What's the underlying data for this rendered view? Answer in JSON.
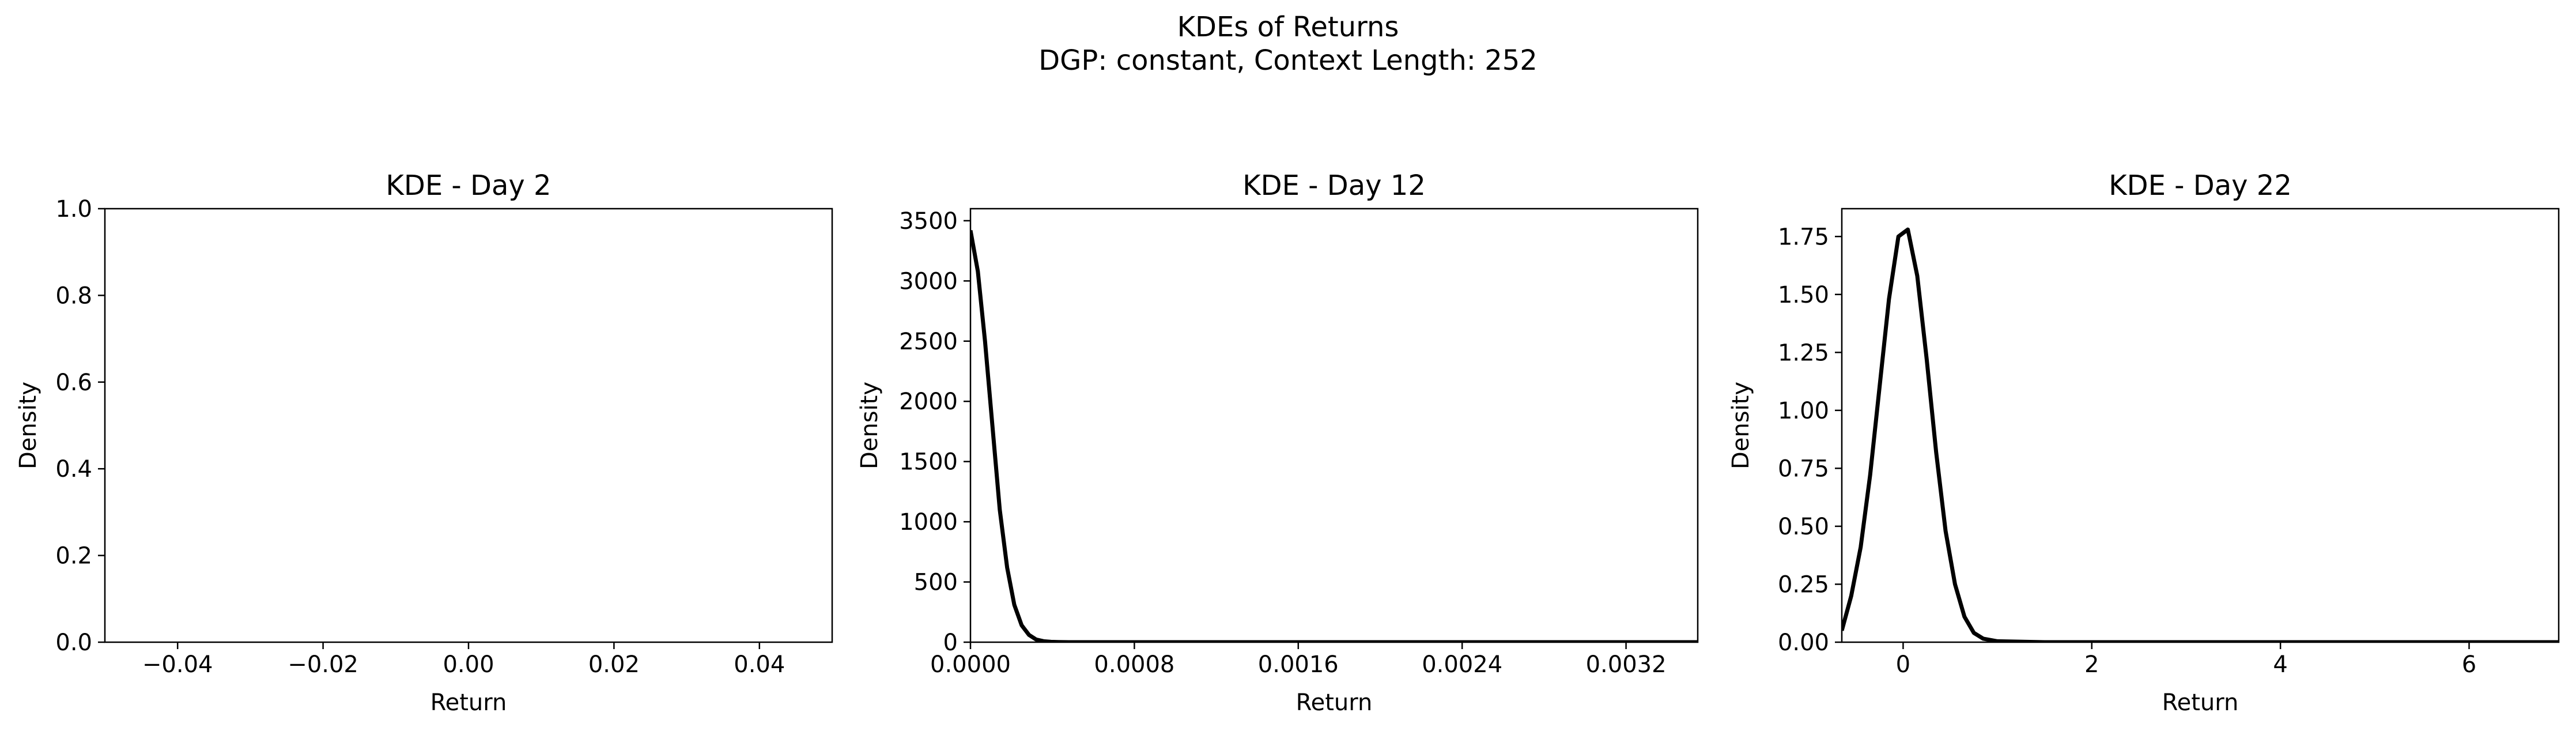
{
  "figure": {
    "suptitle_line1": "KDEs of Returns",
    "suptitle_line2": "DGP: constant, Context Length: 252"
  },
  "chart_data": [
    {
      "type": "line",
      "title": "KDE - Day 2",
      "xlabel": "Return",
      "ylabel": "Density",
      "xlim": [
        -0.05,
        0.05
      ],
      "ylim": [
        0,
        1.0
      ],
      "xticks": [
        -0.04,
        -0.02,
        0.0,
        0.02,
        0.04
      ],
      "xtick_labels": [
        "−0.04",
        "−0.02",
        "0.00",
        "0.02",
        "0.04"
      ],
      "yticks": [
        0.0,
        0.2,
        0.4,
        0.6,
        0.8,
        1.0
      ],
      "ytick_labels": [
        "0.0",
        "0.2",
        "0.4",
        "0.6",
        "0.8",
        "1.0"
      ],
      "grid": false,
      "series": [
        {
          "color": "#000000",
          "x": [],
          "y": []
        }
      ]
    },
    {
      "type": "line",
      "title": "KDE - Day 12",
      "xlabel": "Return",
      "ylabel": "Density",
      "xlim": [
        0.0,
        0.00355
      ],
      "ylim": [
        0,
        3600
      ],
      "xticks": [
        0.0,
        0.0008,
        0.0016,
        0.0024,
        0.0032
      ],
      "xtick_labels": [
        "0.0000",
        "0.0008",
        "0.0016",
        "0.0024",
        "0.0032"
      ],
      "yticks": [
        0,
        500,
        1000,
        1500,
        2000,
        2500,
        3000,
        3500
      ],
      "ytick_labels": [
        "0",
        "500",
        "1000",
        "1500",
        "2000",
        "2500",
        "3000",
        "3500"
      ],
      "grid": false,
      "series": [
        {
          "color": "#000000",
          "x": [
            0.0,
            3.6e-05,
            7.1e-05,
            0.000107,
            0.000143,
            0.000179,
            0.000214,
            0.00025,
            0.000286,
            0.000321,
            0.000357,
            0.000393,
            0.000429,
            0.00048,
            0.0006,
            0.0008,
            0.0012,
            0.0016,
            0.0024,
            0.0032,
            0.00355
          ],
          "y": [
            3420,
            3080,
            2500,
            1800,
            1100,
            620,
            310,
            140,
            60,
            22,
            8,
            3,
            1,
            0,
            0,
            0,
            0,
            0,
            0,
            0,
            0
          ]
        }
      ]
    },
    {
      "type": "line",
      "title": "KDE - Day 22",
      "xlabel": "Return",
      "ylabel": "Density",
      "xlim": [
        -0.65,
        6.95
      ],
      "ylim": [
        0,
        1.87
      ],
      "xticks": [
        0,
        2,
        4,
        6
      ],
      "xtick_labels": [
        "0",
        "2",
        "4",
        "6"
      ],
      "yticks": [
        0.0,
        0.25,
        0.5,
        0.75,
        1.0,
        1.25,
        1.5,
        1.75
      ],
      "ytick_labels": [
        "0.00",
        "0.25",
        "0.50",
        "0.75",
        "1.00",
        "1.25",
        "1.50",
        "1.75"
      ],
      "grid": false,
      "series": [
        {
          "color": "#000000",
          "x": [
            -0.65,
            -0.55,
            -0.45,
            -0.35,
            -0.25,
            -0.15,
            -0.05,
            0.05,
            0.15,
            0.25,
            0.35,
            0.45,
            0.55,
            0.65,
            0.75,
            0.85,
            1.0,
            1.5,
            2.0,
            3.0,
            4.0,
            5.0,
            6.0,
            6.95
          ],
          "y": [
            0.05,
            0.2,
            0.41,
            0.72,
            1.1,
            1.48,
            1.75,
            1.78,
            1.58,
            1.22,
            0.82,
            0.48,
            0.25,
            0.11,
            0.04,
            0.015,
            0.004,
            0.0,
            0.0,
            0.0,
            0.0,
            0.0,
            0.0,
            0.0
          ]
        }
      ]
    }
  ]
}
